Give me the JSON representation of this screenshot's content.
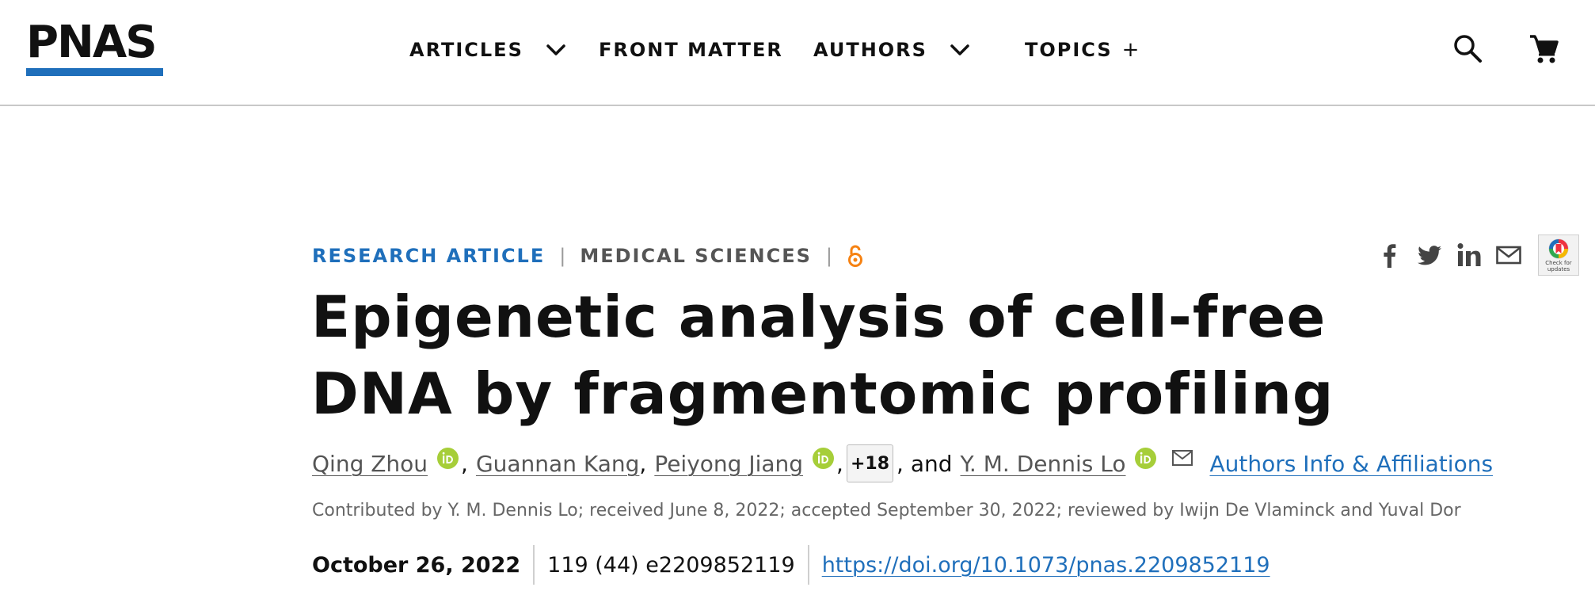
{
  "header": {
    "logo_text": "PNAS",
    "nav": [
      {
        "label": "ARTICLES",
        "has_dropdown": true
      },
      {
        "label": "FRONT MATTER",
        "has_dropdown": false
      },
      {
        "label": "AUTHORS",
        "has_dropdown": true
      },
      {
        "label": "TOPICS",
        "suffix": "+"
      }
    ],
    "icons": [
      "search-icon",
      "cart-icon"
    ]
  },
  "article": {
    "type": "RESEARCH ARTICLE",
    "separator": "|",
    "subject": "MEDICAL SCIENCES",
    "open_access_icon": "open-access-icon",
    "title": "Epigenetic analysis of cell-free DNA by fragmentomic profiling",
    "authors": {
      "list": [
        "Qing Zhou",
        "Guannan Kang",
        "Peiyong Jiang",
        "Y. M. Dennis Lo"
      ],
      "comma": ",",
      "more": "+18",
      "conjunction": ", and",
      "affiliations_link": "Authors Info & Affiliations"
    },
    "contributed": "Contributed by Y. M. Dennis Lo; received June 8, 2022; accepted September 30, 2022; reviewed by Iwijn De Vlaminck and Yuval Dor",
    "date": "October 26, 2022",
    "citation": "119 (44) e2209852119",
    "doi": "https://doi.org/10.1073/pnas.2209852119"
  },
  "share": {
    "icons": [
      "facebook-icon",
      "twitter-icon",
      "linkedin-icon",
      "email-icon"
    ],
    "updates_badge": "Check for updates"
  },
  "colors": {
    "brand_blue": "#1f6fbb",
    "orcid_green": "#a6ce39",
    "open_access_orange": "#f68212",
    "text": "#111111",
    "muted": "#666666"
  }
}
